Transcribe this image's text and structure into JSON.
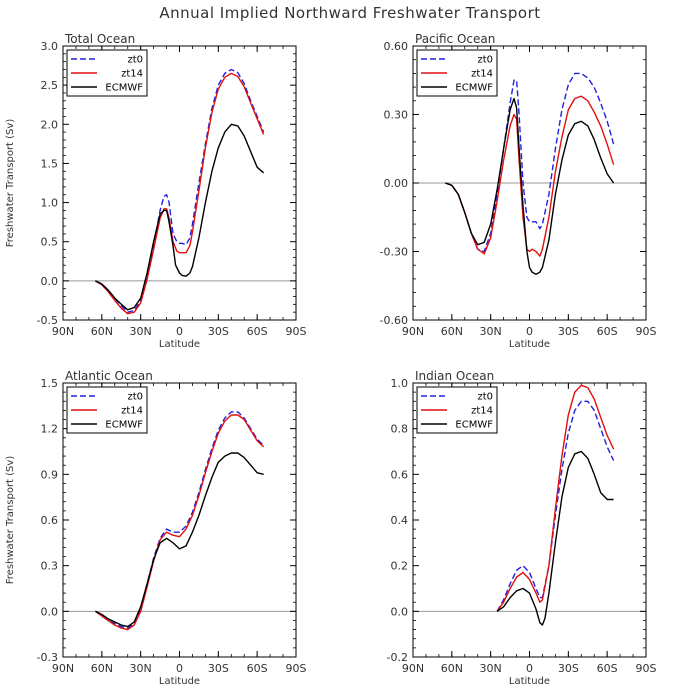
{
  "title": "Annual Implied Northward Freshwater Transport",
  "colors": {
    "zt0": "#2020e0",
    "zt14": "#e01010",
    "ECMWF": "#000000",
    "zero": "#999999",
    "frame": "#000000"
  },
  "chart_data": [
    {
      "type": "line",
      "panel_title": "Total Ocean",
      "xlabel": "Latitude",
      "ylabel": "Freshwater Transport (Sv)",
      "xlim": [
        -90,
        90
      ],
      "ylim": [
        -0.5,
        3.0
      ],
      "x_ticks": [
        -90,
        -60,
        -30,
        0,
        30,
        60,
        90
      ],
      "x_tick_labels": [
        "90N",
        "60N",
        "30N",
        "0",
        "30S",
        "60S",
        "90S"
      ],
      "y_ticks": [
        -0.5,
        0.0,
        0.5,
        1.0,
        1.5,
        2.0,
        2.5,
        3.0
      ],
      "y_tick_labels": [
        "-0.5",
        "0.0",
        "0.5",
        "1.0",
        "1.5",
        "2.0",
        "2.5",
        "3.0"
      ],
      "legend": [
        "zt0",
        "zt14",
        "ECMWF"
      ],
      "series": [
        {
          "name": "zt0",
          "style": "dashed",
          "x": [
            -65,
            -60,
            -55,
            -50,
            -45,
            -40,
            -35,
            -30,
            -25,
            -20,
            -15,
            -12,
            -10,
            -8,
            -5,
            -2,
            0,
            2,
            5,
            8,
            10,
            15,
            20,
            25,
            30,
            35,
            40,
            45,
            50,
            55,
            60,
            65
          ],
          "values": [
            0.0,
            -0.04,
            -0.12,
            -0.22,
            -0.32,
            -0.4,
            -0.38,
            -0.25,
            0.05,
            0.45,
            0.9,
            1.08,
            1.1,
            1.0,
            0.6,
            0.5,
            0.48,
            0.48,
            0.46,
            0.55,
            0.72,
            1.25,
            1.75,
            2.2,
            2.5,
            2.65,
            2.7,
            2.66,
            2.52,
            2.3,
            2.1,
            1.9
          ]
        },
        {
          "name": "zt14",
          "style": "solid",
          "x": [
            -65,
            -60,
            -55,
            -50,
            -45,
            -40,
            -35,
            -30,
            -25,
            -20,
            -15,
            -12,
            -10,
            -8,
            -5,
            -2,
            0,
            2,
            5,
            8,
            10,
            15,
            20,
            25,
            30,
            35,
            40,
            45,
            50,
            55,
            60,
            65
          ],
          "values": [
            0.0,
            -0.05,
            -0.14,
            -0.25,
            -0.35,
            -0.42,
            -0.4,
            -0.28,
            0.02,
            0.4,
            0.8,
            0.92,
            0.92,
            0.8,
            0.5,
            0.38,
            0.36,
            0.36,
            0.36,
            0.45,
            0.62,
            1.15,
            1.7,
            2.15,
            2.45,
            2.6,
            2.65,
            2.61,
            2.48,
            2.27,
            2.07,
            1.87
          ]
        },
        {
          "name": "ECMWF",
          "style": "solid",
          "x": [
            -65,
            -60,
            -55,
            -50,
            -45,
            -40,
            -35,
            -30,
            -25,
            -20,
            -15,
            -12,
            -10,
            -8,
            -5,
            -3,
            0,
            2,
            5,
            8,
            10,
            15,
            20,
            25,
            30,
            35,
            40,
            45,
            50,
            55,
            60,
            65
          ],
          "values": [
            0.0,
            -0.04,
            -0.12,
            -0.22,
            -0.3,
            -0.37,
            -0.34,
            -0.22,
            0.1,
            0.5,
            0.85,
            0.9,
            0.9,
            0.75,
            0.45,
            0.2,
            0.1,
            0.07,
            0.06,
            0.1,
            0.18,
            0.55,
            1.0,
            1.4,
            1.7,
            1.9,
            2.0,
            1.98,
            1.85,
            1.65,
            1.45,
            1.38
          ]
        }
      ]
    },
    {
      "type": "line",
      "panel_title": "Pacific Ocean",
      "xlabel": "Latitude",
      "ylabel": "",
      "xlim": [
        -90,
        90
      ],
      "ylim": [
        -0.6,
        0.6
      ],
      "x_ticks": [
        -90,
        -60,
        -30,
        0,
        30,
        60,
        90
      ],
      "x_tick_labels": [
        "90N",
        "60N",
        "30N",
        "0",
        "30S",
        "60S",
        "90S"
      ],
      "y_ticks": [
        -0.6,
        -0.3,
        0.0,
        0.3,
        0.6
      ],
      "y_tick_labels": [
        "-0.60",
        "-0.30",
        "0.00",
        "0.30",
        "0.60"
      ],
      "legend": [
        "zt0",
        "zt14",
        "ECMWF"
      ],
      "series": [
        {
          "name": "zt0",
          "style": "dashed",
          "x": [
            -65,
            -60,
            -55,
            -50,
            -45,
            -40,
            -35,
            -30,
            -25,
            -20,
            -15,
            -12,
            -10,
            -8,
            -5,
            -2,
            0,
            2,
            5,
            8,
            10,
            15,
            20,
            25,
            30,
            35,
            40,
            45,
            50,
            55,
            60,
            65
          ],
          "values": [
            0.0,
            -0.01,
            -0.05,
            -0.13,
            -0.22,
            -0.29,
            -0.3,
            -0.22,
            -0.05,
            0.15,
            0.35,
            0.45,
            0.45,
            0.3,
            0.0,
            -0.15,
            -0.17,
            -0.17,
            -0.17,
            -0.2,
            -0.18,
            -0.05,
            0.15,
            0.32,
            0.43,
            0.48,
            0.48,
            0.46,
            0.42,
            0.35,
            0.27,
            0.17
          ]
        },
        {
          "name": "zt14",
          "style": "solid",
          "x": [
            -65,
            -60,
            -55,
            -50,
            -45,
            -40,
            -35,
            -30,
            -25,
            -20,
            -15,
            -12,
            -10,
            -8,
            -5,
            -2,
            0,
            2,
            5,
            8,
            10,
            15,
            20,
            25,
            30,
            35,
            40,
            45,
            50,
            55,
            60,
            65
          ],
          "values": [
            0.0,
            -0.01,
            -0.05,
            -0.13,
            -0.22,
            -0.29,
            -0.31,
            -0.24,
            -0.08,
            0.1,
            0.25,
            0.3,
            0.28,
            0.1,
            -0.15,
            -0.29,
            -0.3,
            -0.29,
            -0.3,
            -0.32,
            -0.29,
            -0.15,
            0.05,
            0.2,
            0.32,
            0.37,
            0.38,
            0.36,
            0.31,
            0.25,
            0.17,
            0.08
          ]
        },
        {
          "name": "ECMWF",
          "style": "solid",
          "x": [
            -65,
            -60,
            -55,
            -50,
            -45,
            -40,
            -35,
            -30,
            -25,
            -20,
            -15,
            -12,
            -10,
            -8,
            -5,
            -2,
            0,
            2,
            5,
            8,
            10,
            15,
            20,
            25,
            30,
            35,
            40,
            45,
            50,
            55,
            60,
            65
          ],
          "values": [
            0.0,
            -0.01,
            -0.05,
            -0.13,
            -0.22,
            -0.27,
            -0.26,
            -0.18,
            -0.03,
            0.15,
            0.32,
            0.37,
            0.33,
            0.15,
            -0.1,
            -0.3,
            -0.37,
            -0.39,
            -0.4,
            -0.39,
            -0.37,
            -0.25,
            -0.05,
            0.1,
            0.21,
            0.26,
            0.27,
            0.25,
            0.19,
            0.11,
            0.04,
            0.0
          ]
        }
      ]
    },
    {
      "type": "line",
      "panel_title": "Atlantic Ocean",
      "xlabel": "Latitude",
      "ylabel": "Freshwater Transport (Sv)",
      "xlim": [
        -90,
        90
      ],
      "ylim": [
        -0.3,
        1.5
      ],
      "x_ticks": [
        -90,
        -60,
        -30,
        0,
        30,
        60,
        90
      ],
      "x_tick_labels": [
        "90N",
        "60N",
        "30N",
        "0",
        "30S",
        "60S",
        "90S"
      ],
      "y_ticks": [
        -0.3,
        0.0,
        0.3,
        0.6,
        0.9,
        1.2,
        1.5
      ],
      "y_tick_labels": [
        "-0.3",
        "0.0",
        "0.3",
        "0.6",
        "0.9",
        "1.2",
        "1.5"
      ],
      "legend": [
        "zt0",
        "zt14",
        "ECMWF"
      ],
      "series": [
        {
          "name": "zt0",
          "style": "dashed",
          "x": [
            -65,
            -60,
            -55,
            -50,
            -45,
            -40,
            -35,
            -30,
            -25,
            -20,
            -15,
            -10,
            -5,
            0,
            5,
            10,
            15,
            20,
            25,
            30,
            35,
            40,
            45,
            50,
            55,
            60,
            65
          ],
          "values": [
            0.0,
            -0.03,
            -0.06,
            -0.08,
            -0.1,
            -0.11,
            -0.08,
            0.02,
            0.18,
            0.35,
            0.48,
            0.54,
            0.52,
            0.52,
            0.56,
            0.65,
            0.78,
            0.93,
            1.07,
            1.19,
            1.27,
            1.31,
            1.31,
            1.27,
            1.2,
            1.13,
            1.09
          ]
        },
        {
          "name": "zt14",
          "style": "solid",
          "x": [
            -65,
            -60,
            -55,
            -50,
            -45,
            -40,
            -35,
            -30,
            -25,
            -20,
            -15,
            -10,
            -5,
            0,
            5,
            10,
            15,
            20,
            25,
            30,
            35,
            40,
            45,
            50,
            55,
            60,
            65
          ],
          "values": [
            0.0,
            -0.03,
            -0.06,
            -0.09,
            -0.11,
            -0.12,
            -0.09,
            0.0,
            0.16,
            0.33,
            0.47,
            0.52,
            0.5,
            0.49,
            0.54,
            0.63,
            0.76,
            0.91,
            1.05,
            1.17,
            1.25,
            1.29,
            1.29,
            1.26,
            1.19,
            1.12,
            1.08
          ]
        },
        {
          "name": "ECMWF",
          "style": "solid",
          "x": [
            -65,
            -60,
            -55,
            -50,
            -45,
            -40,
            -35,
            -30,
            -25,
            -20,
            -15,
            -10,
            -5,
            0,
            5,
            10,
            15,
            20,
            25,
            30,
            35,
            40,
            45,
            50,
            55,
            60,
            65
          ],
          "values": [
            0.0,
            -0.02,
            -0.05,
            -0.07,
            -0.09,
            -0.1,
            -0.07,
            0.03,
            0.18,
            0.34,
            0.45,
            0.48,
            0.45,
            0.41,
            0.43,
            0.52,
            0.63,
            0.76,
            0.88,
            0.98,
            1.02,
            1.04,
            1.04,
            1.01,
            0.96,
            0.91,
            0.9
          ]
        }
      ]
    },
    {
      "type": "line",
      "panel_title": "Indian Ocean",
      "xlabel": "Latitude",
      "ylabel": "",
      "xlim": [
        -90,
        90
      ],
      "ylim": [
        -0.2,
        1.0
      ],
      "x_ticks": [
        -90,
        -60,
        -30,
        0,
        30,
        60,
        90
      ],
      "x_tick_labels": [
        "90N",
        "60N",
        "30N",
        "0",
        "30S",
        "60S",
        "90S"
      ],
      "y_ticks": [
        -0.2,
        0.0,
        0.2,
        0.4,
        0.6,
        0.8,
        1.0
      ],
      "y_tick_labels": [
        "-0.2",
        "0.0",
        "0.2",
        "0.4",
        "0.6",
        "0.8",
        "1.0"
      ],
      "legend": [
        "zt0",
        "zt14",
        "ECMWF"
      ],
      "series": [
        {
          "name": "zt0",
          "style": "dashed",
          "x": [
            -25,
            -20,
            -15,
            -10,
            -5,
            0,
            5,
            8,
            10,
            15,
            20,
            25,
            30,
            35,
            40,
            45,
            50,
            55,
            60,
            65
          ],
          "values": [
            0.0,
            0.05,
            0.12,
            0.18,
            0.2,
            0.17,
            0.1,
            0.06,
            0.06,
            0.2,
            0.42,
            0.62,
            0.78,
            0.88,
            0.92,
            0.92,
            0.88,
            0.8,
            0.72,
            0.66
          ]
        },
        {
          "name": "zt14",
          "style": "solid",
          "x": [
            -25,
            -20,
            -15,
            -10,
            -5,
            0,
            5,
            8,
            10,
            15,
            20,
            25,
            30,
            35,
            40,
            45,
            50,
            55,
            60,
            65
          ],
          "values": [
            0.0,
            0.04,
            0.1,
            0.15,
            0.17,
            0.14,
            0.08,
            0.04,
            0.05,
            0.2,
            0.45,
            0.68,
            0.86,
            0.96,
            0.99,
            0.98,
            0.93,
            0.85,
            0.77,
            0.71
          ]
        },
        {
          "name": "ECMWF",
          "style": "solid",
          "x": [
            -25,
            -20,
            -15,
            -10,
            -5,
            0,
            5,
            8,
            10,
            12,
            15,
            20,
            25,
            30,
            35,
            40,
            45,
            50,
            55,
            60,
            65
          ],
          "values": [
            0.0,
            0.02,
            0.06,
            0.09,
            0.1,
            0.08,
            0.01,
            -0.05,
            -0.06,
            -0.03,
            0.08,
            0.3,
            0.5,
            0.63,
            0.69,
            0.7,
            0.67,
            0.6,
            0.52,
            0.49,
            0.49
          ]
        }
      ]
    }
  ]
}
